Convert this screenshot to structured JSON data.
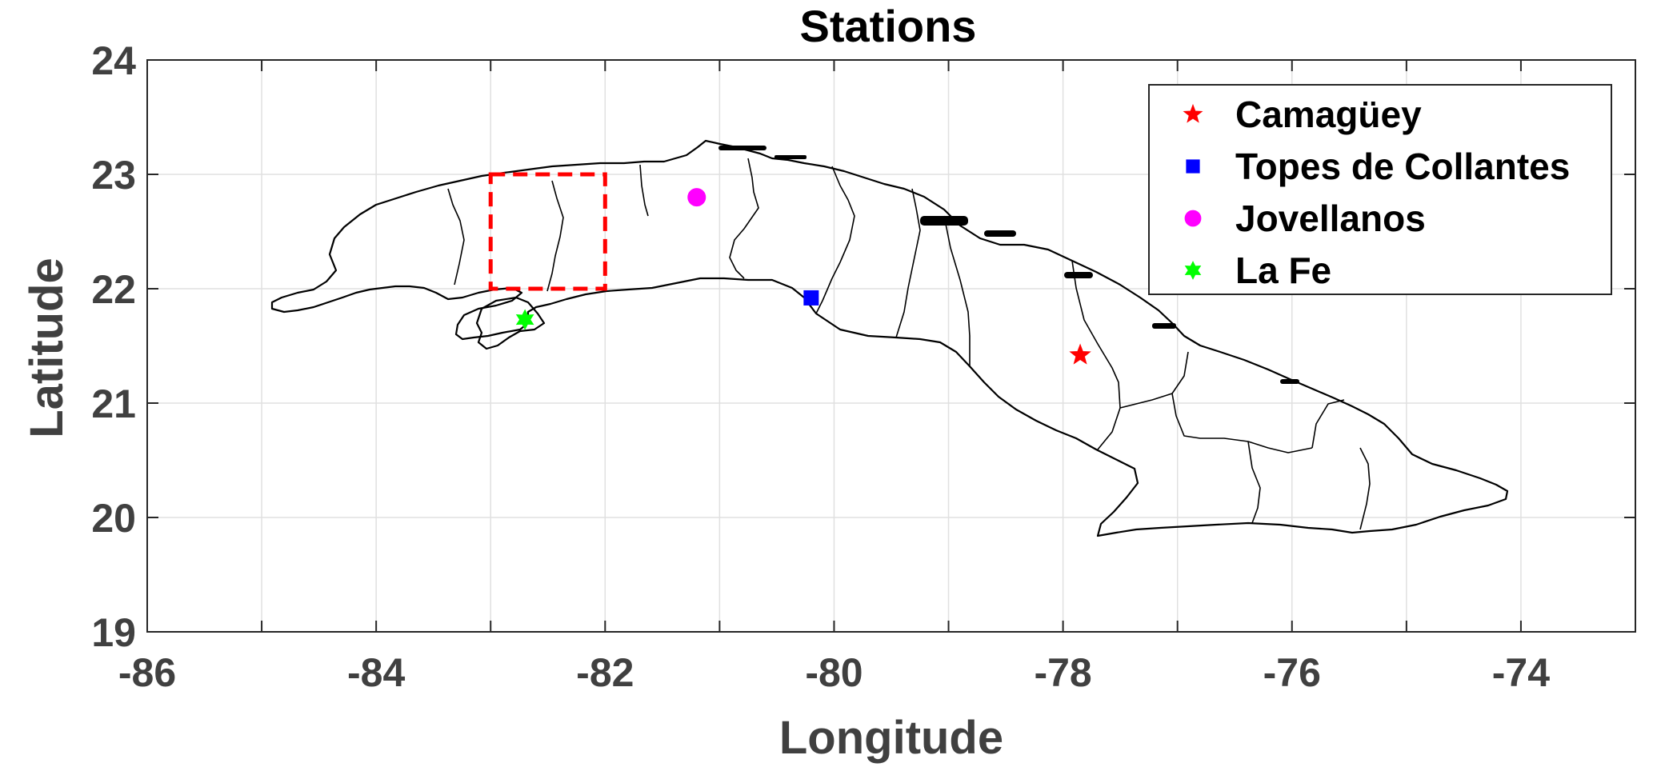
{
  "chart_data": {
    "type": "scatter",
    "title": "Stations",
    "xlabel": "Longitude",
    "ylabel": "Latitude",
    "xlim": [
      -86,
      -73
    ],
    "ylim": [
      19,
      24
    ],
    "x_ticks": [
      -86,
      -84,
      -82,
      -80,
      -78,
      -76,
      -74
    ],
    "y_ticks": [
      19,
      20,
      21,
      22,
      23,
      24
    ],
    "grid": true,
    "legend_position": "top-right",
    "series": [
      {
        "name": "Camagüey",
        "marker": "star",
        "color": "#ff0000",
        "x": -77.85,
        "y": 21.42
      },
      {
        "name": "Topes de Collantes",
        "marker": "square",
        "color": "#0000ff",
        "x": -80.2,
        "y": 21.92
      },
      {
        "name": "Jovellanos",
        "marker": "circle",
        "color": "#ff00ff",
        "x": -81.2,
        "y": 22.8
      },
      {
        "name": "La Fe",
        "marker": "hexagram",
        "color": "#00ff00",
        "x": -82.7,
        "y": 21.73
      }
    ],
    "study_region": {
      "color": "#ff0000",
      "style": "dashed",
      "lon": [
        -83,
        -82
      ],
      "lat": [
        22,
        23
      ]
    },
    "coastline_color": "#000000"
  }
}
